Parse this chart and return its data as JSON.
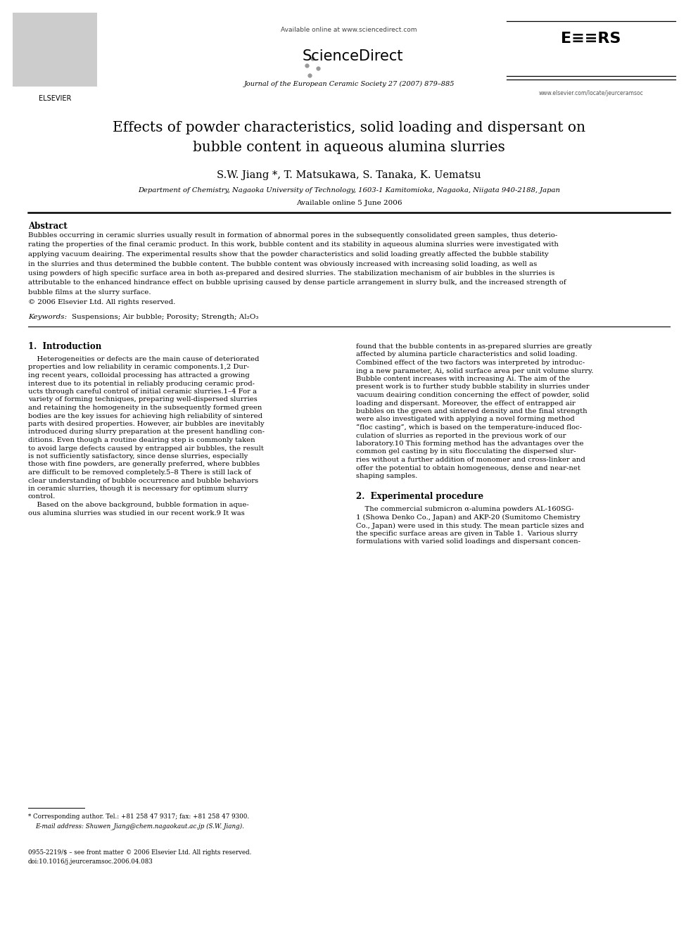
{
  "bg_color": "#ffffff",
  "page_width": 9.92,
  "page_height": 13.23,
  "top_bar_text": "Available online at www.sciencedirect.com",
  "journal_name": "Journal of the European Ceramic Society 27 (2007) 879–885",
  "elsevier_url": "www.elsevier.com/locate/jeurceramsoc",
  "article_title_line1": "Effects of powder characteristics, solid loading and dispersant on",
  "article_title_line2": "bubble content in aqueous alumina slurries",
  "authors": "S.W. Jiang *, T. Matsukawa, S. Tanaka, K. Uematsu",
  "affiliation": "Department of Chemistry, Nagaoka University of Technology, 1603-1 Kamitomioka, Nagaoka, Niigata 940-2188, Japan",
  "available_online": "Available online 5 June 2006",
  "abstract_title": "Abstract",
  "keywords_label": "Keywords:",
  "keywords_text": "Suspensions; Air bubble; Porosity; Strength; Al₂O₃",
  "section1_title": "1.  Introduction",
  "section2_title": "2.  Experimental procedure",
  "footnote_star": "* Corresponding author. Tel.: +81 258 47 9317; fax: +81 258 47 9300.",
  "footnote_email": "E-mail address: Shuwen_Jiang@chem.nagaokaut.ac.jp (S.W. Jiang).",
  "bottom_left1": "0955-2219/$ – see front matter © 2006 Elsevier Ltd. All rights reserved.",
  "bottom_left2": "doi:10.1016/j.jeurceramsoc.2006.04.083",
  "abstract_lines": [
    "Bubbles occurring in ceramic slurries usually result in formation of abnormal pores in the subsequently consolidated green samples, thus deterio-",
    "rating the properties of the final ceramic product. In this work, bubble content and its stability in aqueous alumina slurries were investigated with",
    "applying vacuum deairing. The experimental results show that the powder characteristics and solid loading greatly affected the bubble stability",
    "in the slurries and thus determined the bubble content. The bubble content was obviously increased with increasing solid loading, as well as",
    "using powders of high specific surface area in both as-prepared and desired slurries. The stabilization mechanism of air bubbles in the slurries is",
    "attributable to the enhanced hindrance effect on bubble uprising caused by dense particle arrangement in slurry bulk, and the increased strength of",
    "bubble films at the slurry surface.",
    "© 2006 Elsevier Ltd. All rights reserved."
  ],
  "col1_lines": [
    "    Heterogeneities or defects are the main cause of deteriorated",
    "properties and low reliability in ceramic components.1,2 Dur-",
    "ing recent years, colloidal processing has attracted a growing",
    "interest due to its potential in reliably producing ceramic prod-",
    "ucts through careful control of initial ceramic slurries.1–4 For a",
    "variety of forming techniques, preparing well-dispersed slurries",
    "and retaining the homogeneity in the subsequently formed green",
    "bodies are the key issues for achieving high reliability of sintered",
    "parts with desired properties. However, air bubbles are inevitably",
    "introduced during slurry preparation at the present handling con-",
    "ditions. Even though a routine deairing step is commonly taken",
    "to avoid large defects caused by entrapped air bubbles, the result",
    "is not sufficiently satisfactory, since dense slurries, especially",
    "those with fine powders, are generally preferred, where bubbles",
    "are difficult to be removed completely.5–8 There is still lack of",
    "clear understanding of bubble occurrence and bubble behaviors",
    "in ceramic slurries, though it is necessary for optimum slurry",
    "control.",
    "    Based on the above background, bubble formation in aque-",
    "ous alumina slurries was studied in our recent work.9 It was"
  ],
  "col2_intro_lines": [
    "found that the bubble contents in as-prepared slurries are greatly",
    "affected by alumina particle characteristics and solid loading.",
    "Combined effect of the two factors was interpreted by introduc-",
    "ing a new parameter, Ai, solid surface area per unit volume slurry.",
    "Bubble content increases with increasing Ai. The aim of the",
    "present work is to further study bubble stability in slurries under",
    "vacuum deairing condition concerning the effect of powder, solid",
    "loading and dispersant. Moreover, the effect of entrapped air",
    "bubbles on the green and sintered density and the final strength",
    "were also investigated with applying a novel forming method",
    "“floc casting”, which is based on the temperature-induced floc-",
    "culation of slurries as reported in the previous work of our",
    "laboratory.10 This forming method has the advantages over the",
    "common gel casting by in situ flocculating the dispersed slur-",
    "ries without a further addition of monomer and cross-linker and",
    "offer the potential to obtain homogeneous, dense and near-net",
    "shaping samples."
  ],
  "col2_sec2_lines": [
    "    The commercial submicron α-alumina powders AL-160SG-",
    "1 (Showa Denko Co., Japan) and AKP-20 (Sumitomo Chemistry",
    "Co., Japan) were used in this study. The mean particle sizes and",
    "the specific surface areas are given in Table 1.  Various slurry",
    "formulations with varied solid loadings and dispersant concen-"
  ]
}
